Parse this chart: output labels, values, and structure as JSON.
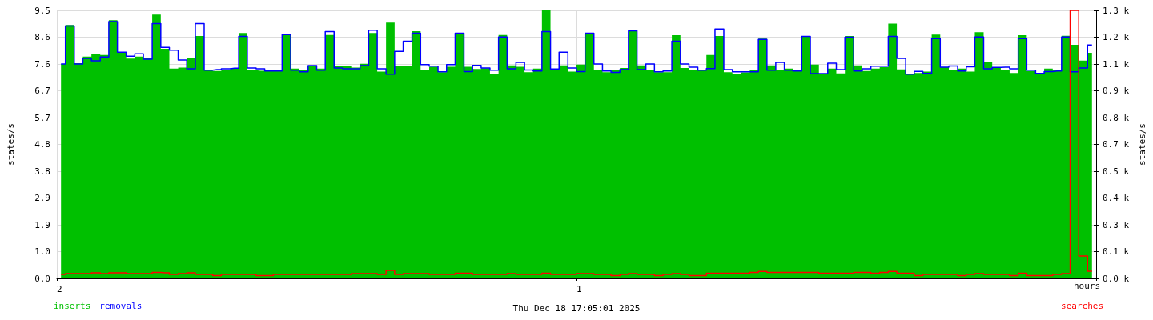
{
  "chart_data": {
    "type": "step",
    "xlabel": "hours",
    "ylabel": "states/s",
    "y2label": "states/s",
    "annotations": [
      "Thu Dec 18 17:05:01 2025"
    ],
    "x": [
      -1.992,
      -1.975,
      -1.958,
      -1.942,
      -1.925,
      -1.908,
      -1.892,
      -1.875,
      -1.858,
      -1.842,
      -1.825,
      -1.808,
      -1.792,
      -1.775,
      -1.758,
      -1.742,
      -1.725,
      -1.708,
      -1.692,
      -1.675,
      -1.658,
      -1.642,
      -1.625,
      -1.608,
      -1.592,
      -1.575,
      -1.558,
      -1.542,
      -1.525,
      -1.508,
      -1.492,
      -1.475,
      -1.458,
      -1.442,
      -1.425,
      -1.408,
      -1.392,
      -1.375,
      -1.358,
      -1.342,
      -1.325,
      -1.308,
      -1.292,
      -1.275,
      -1.258,
      -1.242,
      -1.225,
      -1.208,
      -1.192,
      -1.175,
      -1.158,
      -1.142,
      -1.125,
      -1.108,
      -1.092,
      -1.075,
      -1.058,
      -1.042,
      -1.025,
      -1.008,
      -0.992,
      -0.975,
      -0.958,
      -0.942,
      -0.925,
      -0.908,
      -0.892,
      -0.875,
      -0.858,
      -0.842,
      -0.825,
      -0.808,
      -0.792,
      -0.775,
      -0.758,
      -0.742,
      -0.725,
      -0.708,
      -0.692,
      -0.675,
      -0.658,
      -0.642,
      -0.625,
      -0.608,
      -0.592,
      -0.575,
      -0.558,
      -0.542,
      -0.525,
      -0.508,
      -0.492,
      -0.475,
      -0.458,
      -0.442,
      -0.425,
      -0.408,
      -0.392,
      -0.375,
      -0.358,
      -0.342,
      -0.325,
      -0.308,
      -0.292,
      -0.275,
      -0.258,
      -0.242,
      -0.225,
      -0.208,
      -0.192,
      -0.175,
      -0.158,
      -0.142,
      -0.125,
      -0.108,
      -0.092,
      -0.075,
      -0.058,
      -0.042,
      -0.025,
      -0.008
    ],
    "series": [
      {
        "name": "inserts",
        "type": "area",
        "color": "#00c000",
        "values": [
          7.6,
          8.98,
          7.63,
          7.86,
          7.97,
          7.92,
          9.15,
          8.02,
          7.79,
          7.86,
          7.83,
          9.35,
          8.14,
          7.44,
          7.47,
          7.83,
          8.59,
          7.38,
          7.35,
          7.4,
          7.45,
          8.7,
          7.38,
          7.36,
          7.35,
          7.35,
          8.64,
          7.44,
          7.38,
          7.53,
          7.44,
          8.63,
          7.53,
          7.53,
          7.47,
          7.61,
          8.7,
          7.33,
          9.07,
          7.53,
          7.53,
          8.76,
          7.38,
          7.5,
          7.31,
          7.5,
          8.68,
          7.5,
          7.42,
          7.45,
          7.25,
          8.63,
          7.55,
          7.5,
          7.31,
          7.44,
          9.5,
          7.37,
          7.55,
          7.33,
          7.58,
          8.69,
          7.4,
          7.31,
          7.4,
          7.46,
          8.78,
          7.55,
          7.4,
          7.31,
          7.31,
          8.62,
          7.46,
          7.4,
          7.38,
          7.92,
          8.59,
          7.31,
          7.24,
          7.3,
          7.4,
          8.5,
          7.55,
          7.38,
          7.44,
          7.35,
          8.58,
          7.58,
          7.26,
          7.44,
          7.27,
          8.59,
          7.55,
          7.35,
          7.44,
          7.49,
          9.03,
          7.41,
          7.24,
          7.28,
          7.33,
          8.64,
          7.49,
          7.38,
          7.44,
          7.33,
          8.73,
          7.66,
          7.47,
          7.38,
          7.28,
          8.62,
          7.35,
          7.28,
          7.44,
          7.39,
          8.6,
          8.28,
          7.72,
          8.0
        ]
      },
      {
        "name": "removals",
        "type": "step",
        "color": "#0000ff",
        "values": [
          7.6,
          8.95,
          7.6,
          7.8,
          7.71,
          7.85,
          9.1,
          8.02,
          7.88,
          7.96,
          7.77,
          9.03,
          8.19,
          8.09,
          7.74,
          7.43,
          9.03,
          7.38,
          7.4,
          7.43,
          7.45,
          8.58,
          7.46,
          7.43,
          7.35,
          7.35,
          8.64,
          7.38,
          7.32,
          7.54,
          7.38,
          8.75,
          7.46,
          7.43,
          7.43,
          7.54,
          8.8,
          7.43,
          7.24,
          8.05,
          8.41,
          8.69,
          7.58,
          7.52,
          7.32,
          7.58,
          8.69,
          7.33,
          7.55,
          7.46,
          7.38,
          8.56,
          7.43,
          7.66,
          7.39,
          7.35,
          8.75,
          7.42,
          8.02,
          7.46,
          7.33,
          8.69,
          7.6,
          7.35,
          7.3,
          7.4,
          8.78,
          7.4,
          7.6,
          7.32,
          7.35,
          8.41,
          7.6,
          7.49,
          7.38,
          7.44,
          8.84,
          7.4,
          7.32,
          7.32,
          7.32,
          8.47,
          7.38,
          7.66,
          7.38,
          7.35,
          8.58,
          7.26,
          7.26,
          7.63,
          7.4,
          8.55,
          7.35,
          7.43,
          7.52,
          7.52,
          8.58,
          7.8,
          7.24,
          7.34,
          7.27,
          8.5,
          7.49,
          7.53,
          7.35,
          7.5,
          8.56,
          7.43,
          7.48,
          7.49,
          7.43,
          8.5,
          7.38,
          7.27,
          7.33,
          7.35,
          8.56,
          7.32,
          7.46,
          8.27
        ]
      },
      {
        "name": "searches",
        "type": "step",
        "axis": "y2",
        "color": "#ff0000",
        "values": [
          20,
          24,
          24,
          24,
          28,
          24,
          28,
          28,
          24,
          24,
          24,
          30,
          28,
          20,
          24,
          28,
          20,
          20,
          14,
          20,
          20,
          20,
          20,
          14,
          14,
          20,
          20,
          20,
          20,
          20,
          20,
          20,
          20,
          20,
          24,
          24,
          24,
          20,
          39,
          20,
          24,
          24,
          24,
          20,
          20,
          20,
          26,
          26,
          20,
          20,
          20,
          20,
          24,
          20,
          20,
          20,
          26,
          20,
          20,
          20,
          24,
          24,
          20,
          20,
          14,
          20,
          24,
          20,
          20,
          14,
          20,
          24,
          20,
          14,
          14,
          26,
          26,
          26,
          26,
          26,
          30,
          34,
          30,
          30,
          30,
          30,
          30,
          30,
          26,
          26,
          26,
          26,
          30,
          30,
          26,
          30,
          34,
          26,
          26,
          14,
          20,
          20,
          20,
          20,
          14,
          20,
          24,
          20,
          20,
          20,
          14,
          26,
          14,
          14,
          14,
          20,
          24,
          1320,
          110,
          35
        ]
      }
    ],
    "xlim": [
      -2,
      0
    ],
    "xticks": [
      -2,
      -1,
      {
        "value": 0,
        "label": null
      }
    ],
    "ylim": [
      0,
      9.5
    ],
    "yticks": [
      {
        "value": 0,
        "label": "0.0"
      },
      {
        "value": 0.95,
        "label": "1.0"
      },
      {
        "value": 1.9,
        "label": "1.9"
      },
      {
        "value": 2.85,
        "label": "2.9"
      },
      {
        "value": 3.8,
        "label": "3.8"
      },
      {
        "value": 4.75,
        "label": "4.8"
      },
      {
        "value": 5.7,
        "label": "5.7"
      },
      {
        "value": 6.65,
        "label": "6.7"
      },
      {
        "value": 7.6,
        "label": "7.6"
      },
      {
        "value": 8.55,
        "label": "8.6"
      },
      {
        "value": 9.5,
        "label": "9.5"
      }
    ],
    "y2lim": [
      0,
      1320
    ],
    "y2ticks": [
      {
        "value": 0,
        "label": "0.0 k"
      },
      {
        "value": 132,
        "label": "0.1 k"
      },
      {
        "value": 264,
        "label": "0.3 k"
      },
      {
        "value": 396,
        "label": "0.4 k"
      },
      {
        "value": 528,
        "label": "0.5 k"
      },
      {
        "value": 660,
        "label": "0.7 k"
      },
      {
        "value": 792,
        "label": "0.8 k"
      },
      {
        "value": 924,
        "label": "0.9 k"
      },
      {
        "value": 1056,
        "label": "1.1 k"
      },
      {
        "value": 1188,
        "label": "1.2 k"
      },
      {
        "value": 1320,
        "label": "1.3 k"
      }
    ],
    "grid": true,
    "legend": "bottom",
    "marker": "none"
  }
}
